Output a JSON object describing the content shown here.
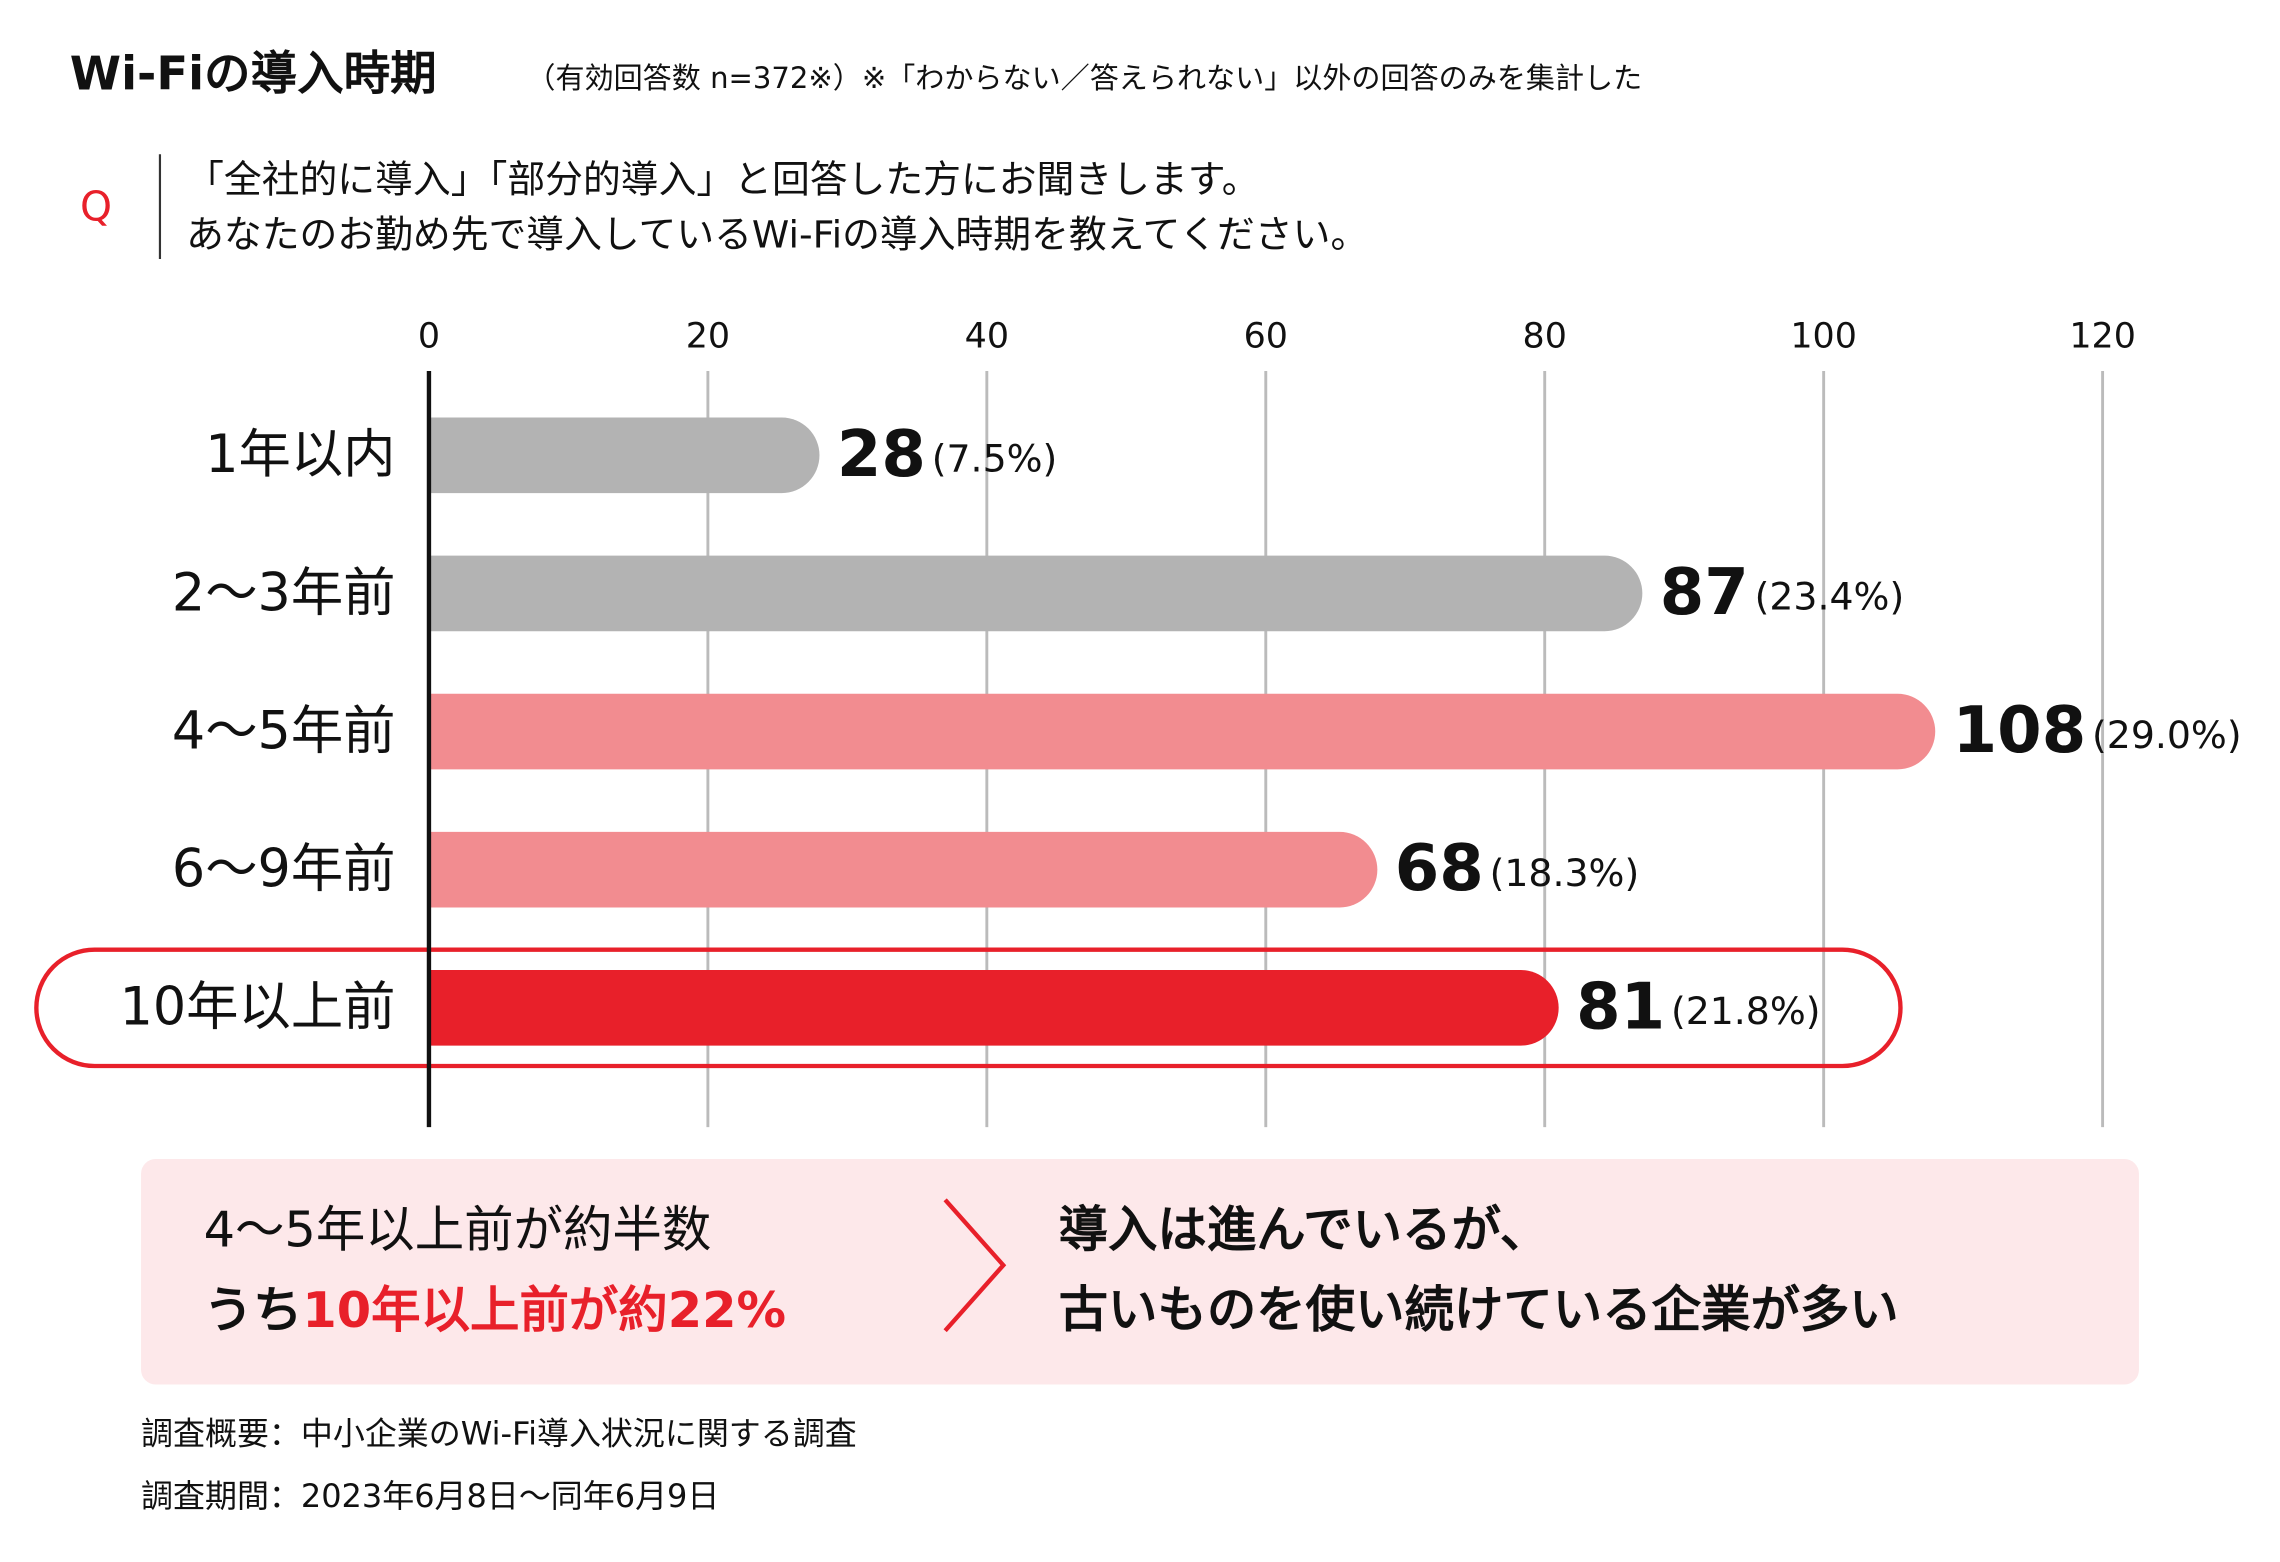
{
  "header": {
    "title": "Wi-Fiの導入時期",
    "note": "（有効回答数 n=372※）※「わからない／答えられない」以外の回答のみを集計した"
  },
  "question": {
    "label": "Q",
    "lines": [
      "「全社的に導入」「部分的導入」と回答した方にお聞きします。",
      "あなたのお勤め先で導入しているWi-Fiの導入時期を教えてください。"
    ]
  },
  "chart_data": {
    "type": "bar",
    "orientation": "horizontal",
    "categories": [
      "1年以内",
      "2〜3年前",
      "4〜5年前",
      "6〜9年前",
      "10年以上前"
    ],
    "values": [
      28,
      87,
      108,
      68,
      81
    ],
    "percent_labels": [
      "(7.5%)",
      "(23.4%)",
      "(29.0%)",
      "(18.3%)",
      "(21.8%)"
    ],
    "colors": [
      "#b3b3b3",
      "#b3b3b3",
      "#f28c90",
      "#f28c90",
      "#e8202a"
    ],
    "highlight_index": 4,
    "xlim": [
      0,
      120
    ],
    "xticks": [
      0,
      20,
      40,
      60,
      80,
      100,
      120
    ],
    "grid": true
  },
  "summary": {
    "left_line1": "4〜5年以上前が約半数",
    "left_line2_prefix": "うち",
    "left_line2_highlight": "10年以上前が約22%",
    "right_lines": [
      "導入は進んでいるが、",
      "古いものを使い続けている企業が多い"
    ]
  },
  "footnotes": [
    "調査概要：中小企業のWi-Fi導入状況に関する調査",
    "調査期間：2023年6月8日〜同年6月9日"
  ]
}
